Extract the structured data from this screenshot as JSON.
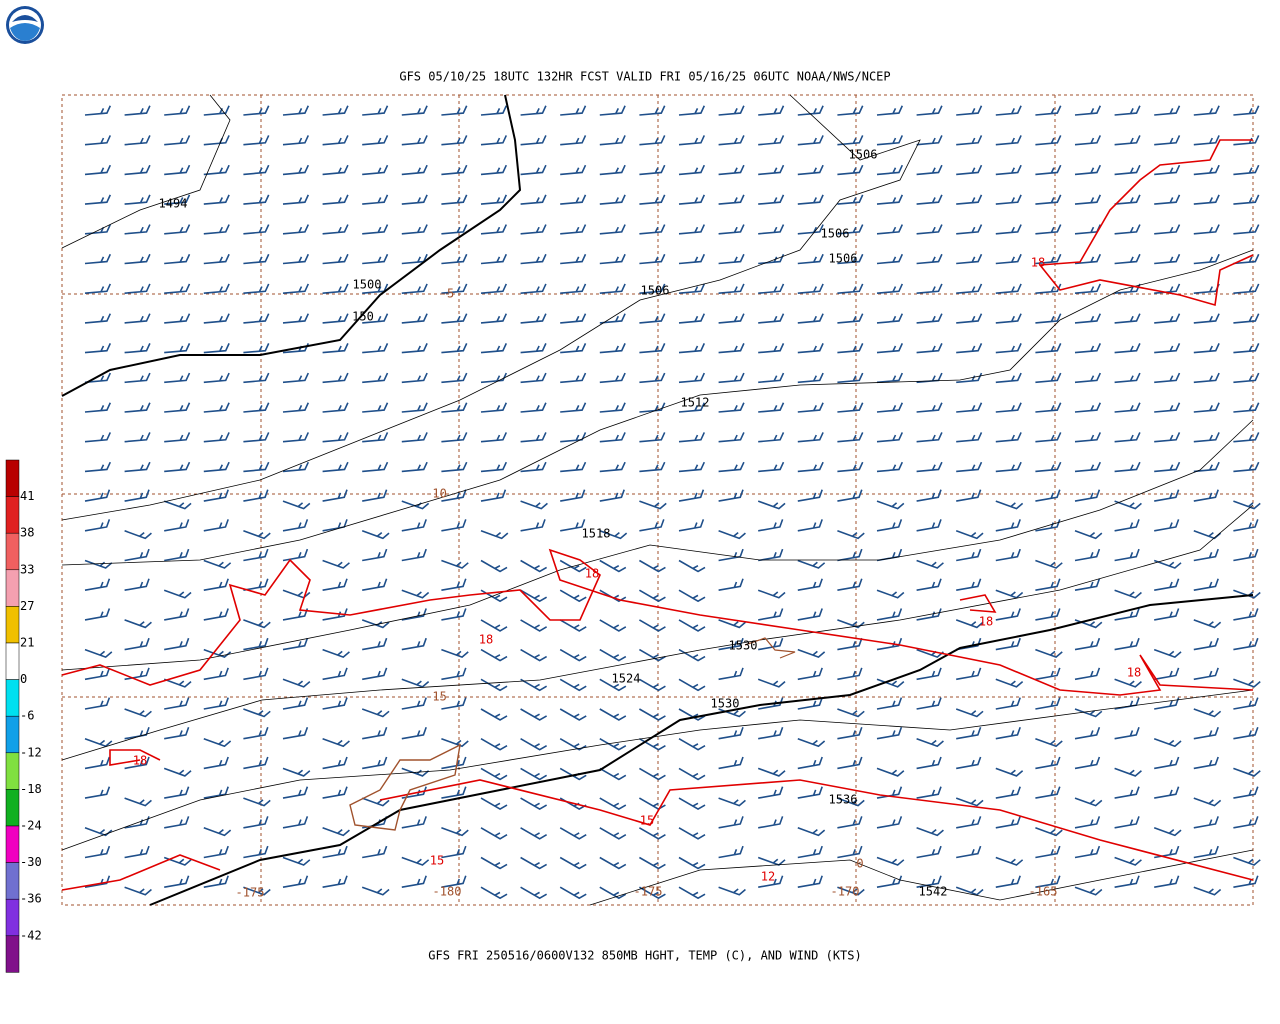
{
  "header": {
    "title": "GFS 05/10/25 18UTC 132HR FCST VALID FRI 05/16/25 06UTC NOAA/NWS/NCEP"
  },
  "footer": {
    "caption": "GFS FRI 250516/0600V132 850MB HGHT, TEMP (C), AND WIND (KTS)"
  },
  "colorbar": {
    "labels": [
      "41",
      "38",
      "33",
      "27",
      "21",
      "0",
      "-6",
      "-12",
      "-18",
      "-24",
      "-30",
      "-36",
      "-42"
    ],
    "colors": [
      "#b80000",
      "#e02020",
      "#f06060",
      "#f4a0b0",
      "#f0c000",
      "#ffffff",
      "#00e0f0",
      "#10a0e8",
      "#80e040",
      "#10b020",
      "#f000c0",
      "#7070d0",
      "#8030e0",
      "#80108a"
    ]
  },
  "height_labels": [
    "1494",
    "1500",
    "150",
    "1506",
    "1506",
    "1506",
    "1506",
    "1512",
    "1518",
    "1524",
    "1530",
    "1530",
    "1536",
    "1542"
  ],
  "temp_labels": [
    "18",
    "18",
    "18",
    "18",
    "18",
    "18",
    "15",
    "15",
    "12"
  ],
  "other_labels": [
    "-5",
    "-10",
    "-15",
    "-175",
    "-180",
    "-175",
    "-170",
    "-165",
    "0"
  ]
}
